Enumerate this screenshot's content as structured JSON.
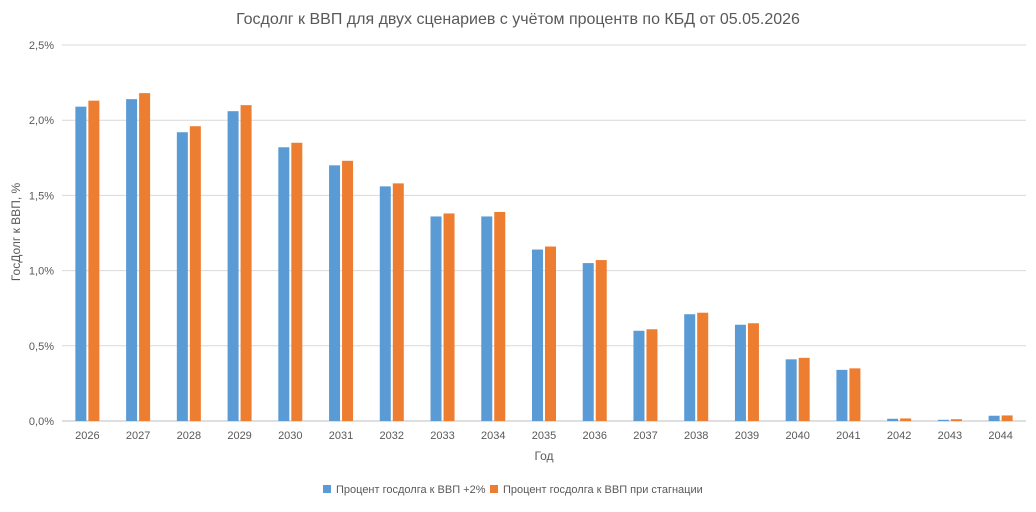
{
  "chart_data": {
    "type": "bar",
    "title": "Госдолг к ВВП для двух сценариев с учётом процентв по КБД от 05.05.2026",
    "xlabel": "Год",
    "ylabel": "ГосДолг к ВВП, %",
    "ylim": [
      0,
      2.5
    ],
    "yticks": [
      "0,0%",
      "0,5%",
      "1,0%",
      "1,5%",
      "2,0%",
      "2,5%"
    ],
    "grid": true,
    "legend_position": "bottom",
    "categories": [
      "2026",
      "2027",
      "2028",
      "2029",
      "2030",
      "2031",
      "2032",
      "2033",
      "2034",
      "2035",
      "2036",
      "2037",
      "2038",
      "2039",
      "2040",
      "2041",
      "2042",
      "2043",
      "2044"
    ],
    "series": [
      {
        "name": "Процент госдолга к ВВП +2%",
        "color": "#5b9bd5",
        "values": [
          2.09,
          2.14,
          1.92,
          2.06,
          1.82,
          1.7,
          1.56,
          1.36,
          1.36,
          1.14,
          1.05,
          0.6,
          0.71,
          0.64,
          0.41,
          0.34,
          0.015,
          0.008,
          0.035
        ]
      },
      {
        "name": "Процент госдолга к ВВП при стагнации",
        "color": "#ed7d31",
        "values": [
          2.13,
          2.18,
          1.96,
          2.1,
          1.85,
          1.73,
          1.58,
          1.38,
          1.39,
          1.16,
          1.07,
          0.61,
          0.72,
          0.65,
          0.42,
          0.35,
          0.017,
          0.012,
          0.037
        ]
      }
    ]
  }
}
